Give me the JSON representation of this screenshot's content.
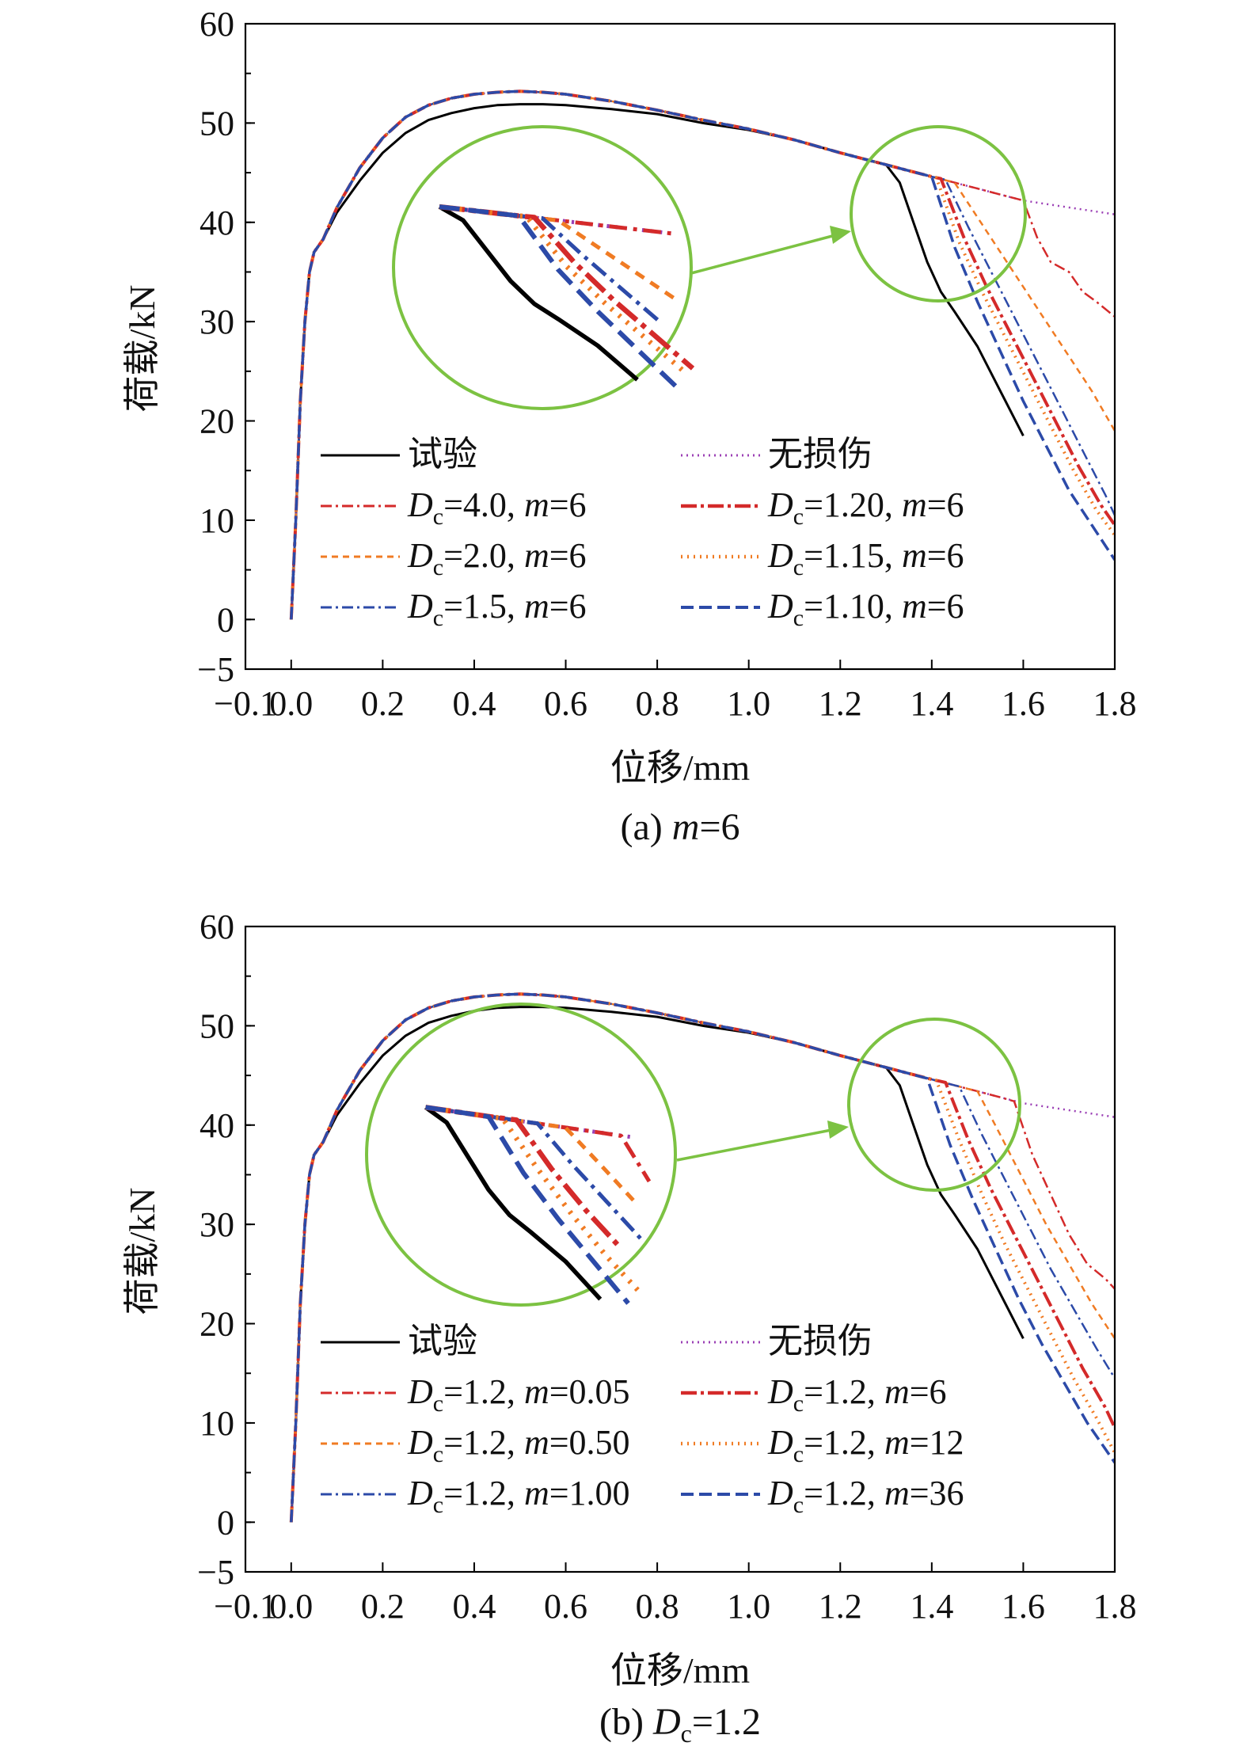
{
  "chart_data": [
    {
      "type": "line",
      "panel_id": "a",
      "caption": "(a) m=6",
      "caption_parts": {
        "prefix": "(a) ",
        "italic": "m",
        "suffix": "=6"
      },
      "xlabel": "位移/mm",
      "ylabel": "荷载/kN",
      "xlim": [
        -0.1,
        1.8
      ],
      "ylim": [
        -5,
        60
      ],
      "xticks": [
        -0.1,
        0.0,
        0.2,
        0.4,
        0.6,
        0.8,
        1.0,
        1.2,
        1.4,
        1.6,
        1.8
      ],
      "xtick_labels": [
        "−0.1",
        "0.0",
        "0.2",
        "0.4",
        "0.6",
        "0.8",
        "1.0",
        "1.2",
        "1.4",
        "1.6",
        "1.8"
      ],
      "yticks": [
        -5,
        0,
        10,
        20,
        30,
        40,
        50,
        60
      ],
      "ytick_labels": [
        "−5",
        "0",
        "10",
        "20",
        "30",
        "40",
        "50",
        "60"
      ],
      "base_curve": {
        "x": [
          0.0,
          0.01,
          0.02,
          0.03,
          0.04,
          0.05,
          0.07,
          0.1,
          0.15,
          0.2,
          0.25,
          0.3,
          0.35,
          0.4,
          0.45,
          0.5,
          0.55,
          0.6,
          0.7,
          0.8,
          0.9,
          1.0,
          1.1,
          1.2,
          1.25,
          1.3,
          1.35,
          1.4,
          1.45,
          1.5,
          1.55,
          1.6,
          1.7,
          1.8
        ],
        "y": [
          0,
          10,
          22,
          30,
          35,
          37,
          38.3,
          41.5,
          45.5,
          48.5,
          50.6,
          51.8,
          52.5,
          52.9,
          53.1,
          53.2,
          53.1,
          52.9,
          52.2,
          51.3,
          50.3,
          49.4,
          48.3,
          47.0,
          46.4,
          45.8,
          45.2,
          44.6,
          44.0,
          43.4,
          42.8,
          42.2,
          41.5,
          40.8
        ]
      },
      "series": [
        {
          "name": "试验",
          "label_parts": {
            "plain": "试验"
          },
          "color": "#000000",
          "dash": "",
          "width": 3,
          "x": [
            0.0,
            0.01,
            0.02,
            0.03,
            0.04,
            0.05,
            0.07,
            0.1,
            0.15,
            0.2,
            0.25,
            0.3,
            0.35,
            0.4,
            0.45,
            0.5,
            0.55,
            0.6,
            0.7,
            0.8,
            0.9,
            1.0,
            1.1,
            1.2,
            1.25,
            1.3,
            1.33,
            1.36,
            1.39,
            1.42,
            1.45,
            1.5,
            1.55,
            1.6
          ],
          "y": [
            0,
            10,
            22,
            30,
            35,
            37,
            38.3,
            41.0,
            44.2,
            47.0,
            49.0,
            50.3,
            51.0,
            51.5,
            51.8,
            51.9,
            51.9,
            51.8,
            51.4,
            50.9,
            50.0,
            49.3,
            48.3,
            47.0,
            46.4,
            45.8,
            44.0,
            40.0,
            36.0,
            33.0,
            31.0,
            27.5,
            23.0,
            18.5
          ]
        },
        {
          "name": "无损伤",
          "label_parts": {
            "plain": "无损伤"
          },
          "color": "#9b3fb5",
          "dash": "2,5",
          "width": 2.5,
          "follow_base": true
        },
        {
          "name": "Dc=4.0, m=6",
          "label_parts": {
            "D": "D",
            "sub": "c",
            "rest1": "=4.0, ",
            "m": "m",
            "rest2": "=6"
          },
          "color": "#d42a2a",
          "dash": "14,5,3,5",
          "width": 2.5,
          "follow_base": true,
          "tail_x": [
            1.6,
            1.63,
            1.66,
            1.7,
            1.73,
            1.76,
            1.8
          ],
          "tail_y": [
            42.2,
            38.5,
            36.0,
            35.0,
            33.0,
            32.0,
            30.5
          ]
        },
        {
          "name": "Dc=2.0, m=6",
          "label_parts": {
            "D": "D",
            "sub": "c",
            "rest1": "=2.0, ",
            "m": "m",
            "rest2": "=6"
          },
          "color": "#f07b23",
          "dash": "8,6",
          "width": 2.5,
          "follow_base": true,
          "tail_x": [
            1.45,
            1.5,
            1.55,
            1.6,
            1.65,
            1.7,
            1.75,
            1.8
          ],
          "tail_y": [
            44.0,
            40.5,
            37.0,
            33.5,
            30.0,
            26.5,
            23.0,
            19.0
          ]
        },
        {
          "name": "Dc=1.5, m=6",
          "label_parts": {
            "D": "D",
            "sub": "c",
            "rest1": "=1.5, ",
            "m": "m",
            "rest2": "=6"
          },
          "color": "#2c4aa8",
          "dash": "14,5,3,5",
          "width": 2.5,
          "follow_base": true,
          "tail_x": [
            1.43,
            1.48,
            1.53,
            1.58,
            1.63,
            1.68,
            1.73,
            1.78,
            1.8
          ],
          "tail_y": [
            44.3,
            39.5,
            35.0,
            30.5,
            26.0,
            21.5,
            17.0,
            12.5,
            10.5
          ]
        },
        {
          "name": "Dc=1.20, m=6",
          "label_parts": {
            "D": "D",
            "sub": "c",
            "rest1": "=1.20, ",
            "m": "m",
            "rest2": "=6"
          },
          "color": "#d42a2a",
          "dash": "20,5,4,5",
          "width": 4,
          "follow_base": true,
          "tail_x": [
            1.42,
            1.47,
            1.52,
            1.57,
            1.62,
            1.67,
            1.72,
            1.77,
            1.8
          ],
          "tail_y": [
            44.4,
            38.5,
            33.5,
            29.0,
            24.5,
            20.0,
            15.5,
            11.5,
            9.5
          ]
        },
        {
          "name": "Dc=1.15, m=6",
          "label_parts": {
            "D": "D",
            "sub": "c",
            "rest1": "=1.15, ",
            "m": "m",
            "rest2": "=6"
          },
          "color": "#f07b23",
          "dash": "2,6",
          "width": 4,
          "follow_base": true,
          "tail_x": [
            1.41,
            1.46,
            1.51,
            1.56,
            1.61,
            1.66,
            1.71,
            1.76,
            1.8
          ],
          "tail_y": [
            44.5,
            38.0,
            33.0,
            28.5,
            24.0,
            19.5,
            15.0,
            11.0,
            8.5
          ]
        },
        {
          "name": "Dc=1.10, m=6",
          "label_parts": {
            "D": "D",
            "sub": "c",
            "rest1": "=1.10, ",
            "m": "m",
            "rest2": "=6"
          },
          "color": "#2c4aa8",
          "dash": "16,7",
          "width": 3.5,
          "follow_base": true,
          "tail_x": [
            1.4,
            1.45,
            1.5,
            1.55,
            1.6,
            1.65,
            1.7,
            1.75,
            1.8
          ],
          "tail_y": [
            44.6,
            37.5,
            32.0,
            27.0,
            22.0,
            17.5,
            13.0,
            9.5,
            6.0
          ]
        }
      ]
    },
    {
      "type": "line",
      "panel_id": "b",
      "caption": "(b) Dc=1.2",
      "caption_parts": {
        "prefix": "(b) ",
        "italic": "D",
        "sub": "c",
        "suffix": "=1.2"
      },
      "xlabel": "位移/mm",
      "ylabel": "荷载/kN",
      "xlim": [
        -0.1,
        1.8
      ],
      "ylim": [
        -5,
        60
      ],
      "xticks": [
        -0.1,
        0.0,
        0.2,
        0.4,
        0.6,
        0.8,
        1.0,
        1.2,
        1.4,
        1.6,
        1.8
      ],
      "xtick_labels": [
        "−0.1",
        "0.0",
        "0.2",
        "0.4",
        "0.6",
        "0.8",
        "1.0",
        "1.2",
        "1.4",
        "1.6",
        "1.8"
      ],
      "yticks": [
        -5,
        0,
        10,
        20,
        30,
        40,
        50,
        60
      ],
      "ytick_labels": [
        "−5",
        "0",
        "10",
        "20",
        "30",
        "40",
        "50",
        "60"
      ],
      "base_curve": {
        "x": [
          0.0,
          0.01,
          0.02,
          0.03,
          0.04,
          0.05,
          0.07,
          0.1,
          0.15,
          0.2,
          0.25,
          0.3,
          0.35,
          0.4,
          0.45,
          0.5,
          0.55,
          0.6,
          0.7,
          0.8,
          0.9,
          1.0,
          1.1,
          1.2,
          1.25,
          1.3,
          1.35,
          1.4,
          1.45,
          1.5,
          1.55,
          1.6,
          1.7,
          1.8
        ],
        "y": [
          0,
          10,
          22,
          30,
          35,
          37,
          38.3,
          41.5,
          45.5,
          48.5,
          50.6,
          51.8,
          52.5,
          52.9,
          53.1,
          53.2,
          53.1,
          52.9,
          52.2,
          51.3,
          50.3,
          49.4,
          48.3,
          47.0,
          46.4,
          45.8,
          45.2,
          44.6,
          44.0,
          43.4,
          42.8,
          42.2,
          41.5,
          40.8
        ]
      },
      "series": [
        {
          "name": "试验",
          "label_parts": {
            "plain": "试验"
          },
          "color": "#000000",
          "dash": "",
          "width": 3,
          "x": [
            0.0,
            0.01,
            0.02,
            0.03,
            0.04,
            0.05,
            0.07,
            0.1,
            0.15,
            0.2,
            0.25,
            0.3,
            0.35,
            0.4,
            0.45,
            0.5,
            0.55,
            0.6,
            0.7,
            0.8,
            0.9,
            1.0,
            1.1,
            1.2,
            1.25,
            1.3,
            1.33,
            1.36,
            1.39,
            1.42,
            1.45,
            1.5,
            1.55,
            1.6
          ],
          "y": [
            0,
            10,
            22,
            30,
            35,
            37,
            38.3,
            41.0,
            44.2,
            47.0,
            49.0,
            50.3,
            51.0,
            51.5,
            51.8,
            51.9,
            51.9,
            51.8,
            51.4,
            50.9,
            50.0,
            49.3,
            48.3,
            47.0,
            46.4,
            45.8,
            44.0,
            40.0,
            36.0,
            33.0,
            31.0,
            27.5,
            23.0,
            18.5
          ]
        },
        {
          "name": "无损伤",
          "label_parts": {
            "plain": "无损伤"
          },
          "color": "#9b3fb5",
          "dash": "2,5",
          "width": 2.5,
          "follow_base": true
        },
        {
          "name": "Dc=1.2, m=0.05",
          "label_parts": {
            "D": "D",
            "sub": "c",
            "rest1": "=1.2, ",
            "m": "m",
            "rest2": "=0.05"
          },
          "color": "#d42a2a",
          "dash": "14,5,3,5",
          "width": 2.5,
          "follow_base": true,
          "tail_x": [
            1.58,
            1.62,
            1.66,
            1.7,
            1.74,
            1.78,
            1.8
          ],
          "tail_y": [
            42.4,
            37.0,
            33.0,
            29.0,
            26.0,
            24.5,
            23.5
          ]
        },
        {
          "name": "Dc=1.2, m=0.50",
          "label_parts": {
            "D": "D",
            "sub": "c",
            "rest1": "=1.2, ",
            "m": "m",
            "rest2": "=0.50"
          },
          "color": "#f07b23",
          "dash": "8,6",
          "width": 2.5,
          "follow_base": true,
          "tail_x": [
            1.5,
            1.55,
            1.6,
            1.65,
            1.7,
            1.75,
            1.8
          ],
          "tail_y": [
            43.4,
            39.0,
            34.5,
            30.0,
            26.0,
            22.0,
            18.5
          ]
        },
        {
          "name": "Dc=1.2, m=1.00",
          "label_parts": {
            "D": "D",
            "sub": "c",
            "rest1": "=1.2, ",
            "m": "m",
            "rest2": "=1.00"
          },
          "color": "#2c4aa8",
          "dash": "14,5,3,5",
          "width": 2.5,
          "follow_base": true,
          "tail_x": [
            1.46,
            1.51,
            1.56,
            1.61,
            1.66,
            1.71,
            1.76,
            1.8
          ],
          "tail_y": [
            43.9,
            39.0,
            34.5,
            30.0,
            25.5,
            21.5,
            17.5,
            14.5
          ]
        },
        {
          "name": "Dc=1.2, m=6",
          "label_parts": {
            "D": "D",
            "sub": "c",
            "rest1": "=1.2, ",
            "m": "m",
            "rest2": "=6"
          },
          "color": "#d42a2a",
          "dash": "20,5,4,5",
          "width": 4,
          "follow_base": true,
          "tail_x": [
            1.43,
            1.48,
            1.53,
            1.58,
            1.63,
            1.68,
            1.73,
            1.78,
            1.8
          ],
          "tail_y": [
            44.3,
            38.5,
            33.5,
            29.0,
            24.5,
            20.0,
            15.5,
            11.5,
            9.5
          ]
        },
        {
          "name": "Dc=1.2, m=12",
          "label_parts": {
            "D": "D",
            "sub": "c",
            "rest1": "=1.2, ",
            "m": "m",
            "rest2": "=12"
          },
          "color": "#f07b23",
          "dash": "2,6",
          "width": 4,
          "follow_base": true,
          "tail_x": [
            1.41,
            1.46,
            1.51,
            1.56,
            1.61,
            1.66,
            1.71,
            1.76,
            1.8
          ],
          "tail_y": [
            44.5,
            38.5,
            33.0,
            28.0,
            23.5,
            19.0,
            14.5,
            10.5,
            7.0
          ]
        },
        {
          "name": "Dc=1.2, m=36",
          "label_parts": {
            "D": "D",
            "sub": "c",
            "rest1": "=1.2, ",
            "m": "m",
            "rest2": "=36"
          },
          "color": "#2c4aa8",
          "dash": "16,7",
          "width": 3.5,
          "follow_base": true,
          "tail_x": [
            1.39,
            1.44,
            1.49,
            1.54,
            1.59,
            1.64,
            1.69,
            1.74,
            1.8
          ],
          "tail_y": [
            44.7,
            38.0,
            32.5,
            27.5,
            22.5,
            18.0,
            14.0,
            10.0,
            6.0
          ]
        }
      ]
    }
  ]
}
